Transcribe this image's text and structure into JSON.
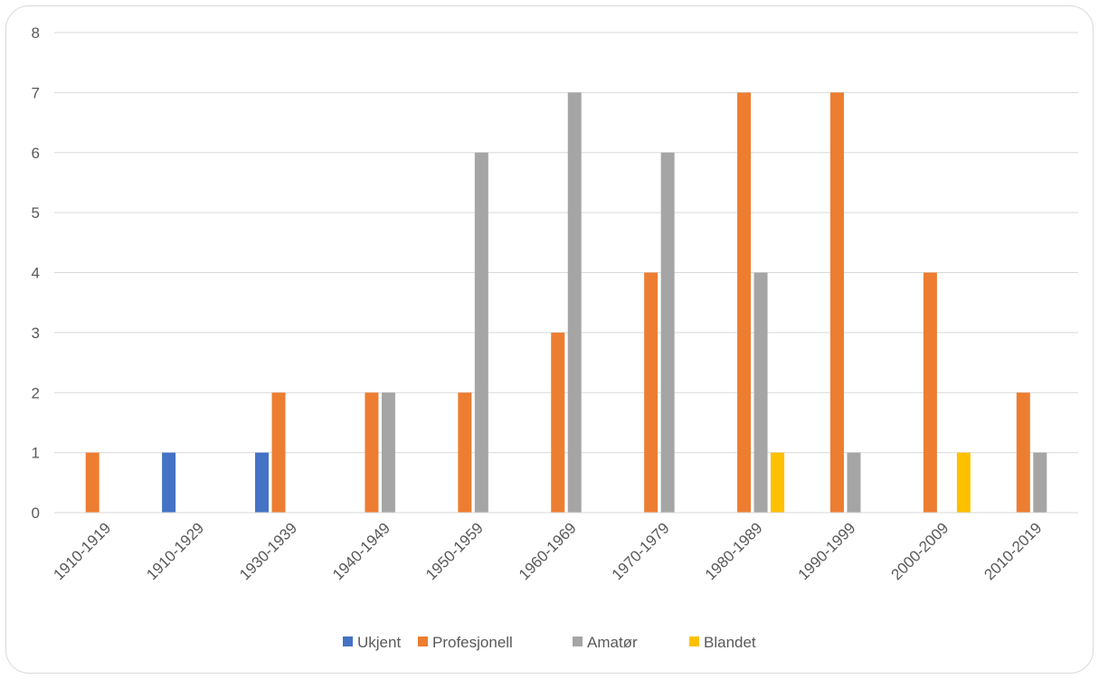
{
  "chart_data": {
    "type": "bar",
    "title": "",
    "xlabel": "",
    "ylabel": "",
    "ylim": [
      0,
      8
    ],
    "yticks": [
      "0",
      "1",
      "2",
      "3",
      "4",
      "5",
      "6",
      "7",
      "8"
    ],
    "grid": "horizontal",
    "legend_position": "bottom",
    "categories": [
      "1910-1919",
      "1910-1929",
      "1930-1939",
      "1940-1949",
      "1950-1959",
      "1960-1969",
      "1970-1979",
      "1980-1989",
      "1990-1999",
      "2000-2009",
      "2010-2019"
    ],
    "series": [
      {
        "name": "Ukjent",
        "color": "#4472c4",
        "values": [
          0,
          1,
          1,
          0,
          0,
          0,
          0,
          0,
          0,
          0,
          0
        ]
      },
      {
        "name": "Profesjonell",
        "color": "#ed7d31",
        "values": [
          1,
          0,
          2,
          2,
          2,
          3,
          4,
          7,
          7,
          4,
          2
        ]
      },
      {
        "name": "Amatør",
        "color": "#a5a5a5",
        "values": [
          0,
          0,
          0,
          2,
          6,
          7,
          6,
          4,
          1,
          0,
          1
        ]
      },
      {
        "name": "Blandet",
        "color": "#ffc000",
        "values": [
          0,
          0,
          0,
          0,
          0,
          0,
          0,
          1,
          0,
          1,
          0
        ]
      }
    ]
  }
}
